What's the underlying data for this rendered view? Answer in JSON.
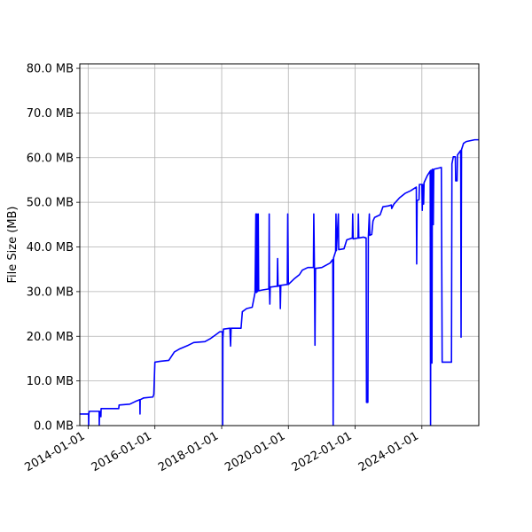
{
  "chart_data": {
    "type": "line",
    "title": "",
    "xlabel": "",
    "ylabel": "File Size (MB)",
    "x_type": "date",
    "xlim": [
      "2013-10-01",
      "2025-09-15"
    ],
    "ylim": [
      0,
      81
    ],
    "grid": true,
    "line_color": "#0000ff",
    "x_ticks": [
      "2014-01-01",
      "2016-01-01",
      "2018-01-01",
      "2020-01-01",
      "2022-01-01",
      "2024-01-01"
    ],
    "y_ticks": [
      0,
      10,
      20,
      30,
      40,
      50,
      60,
      70,
      80
    ],
    "y_tick_labels": [
      "0.0 MB",
      "10.0 MB",
      "20.0 MB",
      "30.0 MB",
      "40.0 MB",
      "50.0 MB",
      "60.0 MB",
      "70.0 MB",
      "80.0 MB"
    ],
    "series": [
      {
        "points": [
          [
            "2013-10-01",
            2.6
          ],
          [
            "2014-01-05",
            2.6
          ],
          [
            "2014-01-06",
            0
          ],
          [
            "2014-01-08",
            2.6
          ],
          [
            "2014-01-12",
            3.2
          ],
          [
            "2014-05-01",
            3.2
          ],
          [
            "2014-05-02",
            0
          ],
          [
            "2014-05-04",
            2.0
          ],
          [
            "2014-05-06",
            3.2
          ],
          [
            "2014-05-20",
            2.0
          ],
          [
            "2014-05-22",
            3.8
          ],
          [
            "2014-12-01",
            3.8
          ],
          [
            "2014-12-05",
            4.6
          ],
          [
            "2015-04-01",
            4.8
          ],
          [
            "2015-06-01",
            5.4
          ],
          [
            "2015-07-20",
            5.8
          ],
          [
            "2015-07-22",
            2.6
          ],
          [
            "2015-07-24",
            5.8
          ],
          [
            "2015-09-01",
            6.2
          ],
          [
            "2015-12-10",
            6.4
          ],
          [
            "2015-12-20",
            7.0
          ],
          [
            "2016-01-01",
            14.2
          ],
          [
            "2016-03-01",
            14.4
          ],
          [
            "2016-06-01",
            14.6
          ],
          [
            "2016-08-01",
            16.5
          ],
          [
            "2016-10-01",
            17.2
          ],
          [
            "2017-01-01",
            18.0
          ],
          [
            "2017-03-01",
            18.6
          ],
          [
            "2017-07-01",
            18.8
          ],
          [
            "2017-09-01",
            19.5
          ],
          [
            "2017-11-01",
            20.4
          ],
          [
            "2017-12-10",
            21.0
          ],
          [
            "2018-01-10",
            21.0
          ],
          [
            "2018-01-12",
            0
          ],
          [
            "2018-01-14",
            19.5
          ],
          [
            "2018-01-20",
            21.6
          ],
          [
            "2018-04-01",
            21.8
          ],
          [
            "2018-04-08",
            17.8
          ],
          [
            "2018-04-14",
            21.8
          ],
          [
            "2018-08-01",
            21.8
          ],
          [
            "2018-08-15",
            25.5
          ],
          [
            "2018-10-01",
            26.2
          ],
          [
            "2018-12-01",
            26.5
          ],
          [
            "2019-01-01",
            29.8
          ],
          [
            "2019-01-10",
            47.4
          ],
          [
            "2019-01-16",
            29.8
          ],
          [
            "2019-01-22",
            47.4
          ],
          [
            "2019-01-28",
            30.0
          ],
          [
            "2019-02-05",
            47.4
          ],
          [
            "2019-02-10",
            30.2
          ],
          [
            "2019-04-01",
            30.4
          ],
          [
            "2019-06-01",
            30.6
          ],
          [
            "2019-06-05",
            47.4
          ],
          [
            "2019-06-08",
            30.6
          ],
          [
            "2019-06-12",
            27.2
          ],
          [
            "2019-06-16",
            31.0
          ],
          [
            "2019-09-01",
            31.2
          ],
          [
            "2019-09-05",
            37.4
          ],
          [
            "2019-09-10",
            31.2
          ],
          [
            "2019-10-01",
            31.4
          ],
          [
            "2019-10-05",
            26.2
          ],
          [
            "2019-10-10",
            31.4
          ],
          [
            "2019-12-20",
            31.6
          ],
          [
            "2019-12-25",
            47.4
          ],
          [
            "2020-01-01",
            31.6
          ],
          [
            "2020-03-01",
            32.8
          ],
          [
            "2020-05-01",
            33.8
          ],
          [
            "2020-06-01",
            34.8
          ],
          [
            "2020-08-01",
            35.4
          ],
          [
            "2020-10-01",
            35.4
          ],
          [
            "2020-10-05",
            47.4
          ],
          [
            "2020-10-12",
            35.4
          ],
          [
            "2020-10-18",
            18.0
          ],
          [
            "2020-10-24",
            35.2
          ],
          [
            "2021-01-01",
            35.4
          ],
          [
            "2021-04-01",
            36.4
          ],
          [
            "2021-05-01",
            37.2
          ],
          [
            "2021-05-05",
            0
          ],
          [
            "2021-05-10",
            37.6
          ],
          [
            "2021-06-01",
            39.0
          ],
          [
            "2021-06-05",
            47.4
          ],
          [
            "2021-06-10",
            39.2
          ],
          [
            "2021-07-01",
            47.4
          ],
          [
            "2021-07-05",
            39.4
          ],
          [
            "2021-09-01",
            39.6
          ],
          [
            "2021-10-01",
            41.6
          ],
          [
            "2021-12-01",
            42.0
          ],
          [
            "2021-12-05",
            47.4
          ],
          [
            "2021-12-10",
            41.8
          ],
          [
            "2022-02-01",
            42.0
          ],
          [
            "2022-02-05",
            47.4
          ],
          [
            "2022-02-10",
            42.0
          ],
          [
            "2022-04-01",
            42.2
          ],
          [
            "2022-05-01",
            42.0
          ],
          [
            "2022-05-05",
            5.2
          ],
          [
            "2022-05-20",
            5.2
          ],
          [
            "2022-05-25",
            42.2
          ],
          [
            "2022-06-05",
            47.4
          ],
          [
            "2022-06-10",
            42.6
          ],
          [
            "2022-07-01",
            42.8
          ],
          [
            "2022-07-15",
            45.8
          ],
          [
            "2022-08-01",
            46.6
          ],
          [
            "2022-10-01",
            47.2
          ],
          [
            "2022-11-01",
            49.0
          ],
          [
            "2023-01-01",
            49.2
          ],
          [
            "2023-02-01",
            49.4
          ],
          [
            "2023-02-05",
            48.6
          ],
          [
            "2023-03-01",
            49.6
          ],
          [
            "2023-05-01",
            51.0
          ],
          [
            "2023-07-01",
            52.0
          ],
          [
            "2023-09-01",
            52.6
          ],
          [
            "2023-10-01",
            53.0
          ],
          [
            "2023-11-01",
            53.4
          ],
          [
            "2023-11-05",
            36.2
          ],
          [
            "2023-11-10",
            50.4
          ],
          [
            "2023-12-01",
            50.6
          ],
          [
            "2023-12-05",
            54.0
          ],
          [
            "2024-01-01",
            54.0
          ],
          [
            "2024-01-05",
            48.2
          ],
          [
            "2024-01-10",
            54.0
          ],
          [
            "2024-01-20",
            49.6
          ],
          [
            "2024-01-25",
            54.4
          ],
          [
            "2024-03-01",
            56.0
          ],
          [
            "2024-04-01",
            57.0
          ],
          [
            "2024-04-05",
            0
          ],
          [
            "2024-04-10",
            57.2
          ],
          [
            "2024-04-20",
            14.0
          ],
          [
            "2024-04-25",
            57.4
          ],
          [
            "2024-05-05",
            45.0
          ],
          [
            "2024-05-10",
            57.4
          ],
          [
            "2024-08-01",
            57.8
          ],
          [
            "2024-08-10",
            14.2
          ],
          [
            "2024-11-20",
            14.2
          ],
          [
            "2024-11-25",
            58.6
          ],
          [
            "2024-12-10",
            60.2
          ],
          [
            "2025-01-01",
            60.2
          ],
          [
            "2025-01-05",
            54.8
          ],
          [
            "2025-01-20",
            54.8
          ],
          [
            "2025-01-25",
            60.6
          ],
          [
            "2025-03-01",
            61.6
          ],
          [
            "2025-03-05",
            19.8
          ],
          [
            "2025-03-10",
            61.8
          ],
          [
            "2025-04-01",
            63.2
          ],
          [
            "2025-05-01",
            63.6
          ],
          [
            "2025-08-01",
            64.0
          ],
          [
            "2025-09-15",
            64.0
          ]
        ]
      }
    ]
  }
}
